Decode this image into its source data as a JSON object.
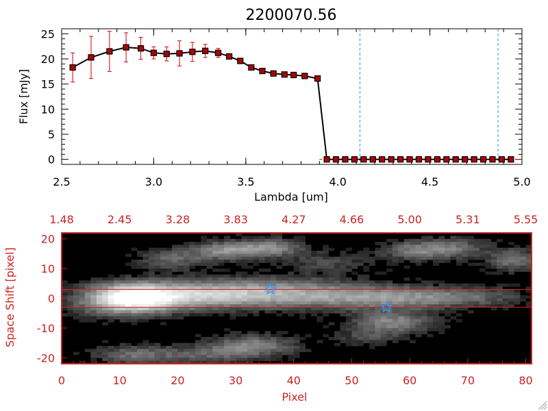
{
  "chart_data": [
    {
      "type": "line",
      "title": "2200070.56",
      "xlabel": "Lambda [um]",
      "ylabel": "Flux [mJy]",
      "xlim": [
        2.5,
        5.0
      ],
      "ylim": [
        -1,
        26
      ],
      "x_ticks": [
        "2.5",
        "3.0",
        "3.5",
        "4.0",
        "4.5",
        "5.0"
      ],
      "y_ticks": [
        "0",
        "5",
        "10",
        "15",
        "20",
        "25"
      ],
      "x": [
        2.56,
        2.66,
        2.76,
        2.85,
        2.93,
        3.0,
        3.07,
        3.14,
        3.21,
        3.28,
        3.35,
        3.41,
        3.47,
        3.53,
        3.59,
        3.65,
        3.71,
        3.76,
        3.82,
        3.89,
        3.94,
        3.99,
        4.04,
        4.09,
        4.14,
        4.19,
        4.24,
        4.29,
        4.34,
        4.39,
        4.44,
        4.49,
        4.54,
        4.59,
        4.64,
        4.69,
        4.74,
        4.79,
        4.84,
        4.89,
        4.94
      ],
      "y": [
        18.3,
        20.3,
        21.5,
        22.3,
        22.1,
        21.2,
        21.0,
        21.1,
        21.4,
        21.6,
        21.2,
        20.5,
        19.6,
        18.3,
        17.6,
        17.1,
        16.9,
        16.8,
        16.6,
        16.1,
        0.0,
        0.0,
        0.0,
        0.0,
        0.0,
        0.0,
        0.0,
        0.0,
        0.0,
        0.0,
        0.0,
        0.0,
        0.0,
        0.0,
        0.0,
        0.0,
        0.0,
        0.0,
        0.0,
        0.0,
        0.0
      ],
      "yerr": [
        2.9,
        4.2,
        4.0,
        2.9,
        2.2,
        1.2,
        1.4,
        2.5,
        1.9,
        1.3,
        0.9,
        0.5,
        0.3,
        0.3,
        0.2,
        0.2,
        0.2,
        0.2,
        0.2,
        0.2,
        0.0,
        0.0,
        0.0,
        0.0,
        0.0,
        0.0,
        0.0,
        0.0,
        0.0,
        0.0,
        0.0,
        0.0,
        0.0,
        0.0,
        0.0,
        0.0,
        0.0,
        0.0,
        0.0,
        0.0,
        0.0
      ],
      "vlines": [
        4.12,
        4.87
      ],
      "grid": false,
      "colors": {
        "line": "#000000",
        "marker": "#b00000",
        "errorbar": "#cc0000",
        "vline": "#1aa0c8",
        "zeroline": "#cc0000",
        "axis": "#000000"
      }
    },
    {
      "type": "heatmap",
      "xlabel": "Pixel",
      "ylabel": "Space Shift [pixel]",
      "xlim": [
        0,
        81
      ],
      "ylim": [
        -22,
        22
      ],
      "x_ticks": [
        "0",
        "10",
        "20",
        "30",
        "40",
        "50",
        "60",
        "70",
        "80"
      ],
      "y_ticks": [
        "-20",
        "-10",
        "0",
        "10",
        "20"
      ],
      "top_axis_ticks": [
        "1.48",
        "2.45",
        "3.28",
        "3.83",
        "4.27",
        "4.66",
        "5.00",
        "5.31",
        "5.55"
      ],
      "hlines": [
        3,
        -3
      ],
      "stars": [
        {
          "x": 36,
          "y": 3
        },
        {
          "x": 56,
          "y": -3
        }
      ],
      "blobs": [
        {
          "x": 12,
          "y": 0.5,
          "sx": 5.5,
          "sy": 3.2,
          "a": 1.0
        },
        {
          "x": 24,
          "y": 0.8,
          "sx": 8,
          "sy": 3.0,
          "a": 0.55
        },
        {
          "x": 40,
          "y": 0.6,
          "sx": 10,
          "sy": 2.8,
          "a": 0.45
        },
        {
          "x": 56,
          "y": 0.0,
          "sx": 8,
          "sy": 2.6,
          "a": 0.35
        },
        {
          "x": 69,
          "y": 0.5,
          "sx": 8,
          "sy": 2.4,
          "a": 0.3
        },
        {
          "x": 36,
          "y": 4.5,
          "sx": 12,
          "sy": 2.5,
          "a": 0.22
        },
        {
          "x": 10,
          "y": -3.5,
          "sx": 6,
          "sy": 2.5,
          "a": 0.22
        },
        {
          "x": 28,
          "y": 16,
          "sx": 4,
          "sy": 2.2,
          "a": 0.45
        },
        {
          "x": 36,
          "y": 17,
          "sx": 4,
          "sy": 2.2,
          "a": 0.45
        },
        {
          "x": 19,
          "y": 13,
          "sx": 4,
          "sy": 2.5,
          "a": 0.3
        },
        {
          "x": 61,
          "y": 16,
          "sx": 4,
          "sy": 2.2,
          "a": 0.4
        },
        {
          "x": 68,
          "y": 17,
          "sx": 4,
          "sy": 2.5,
          "a": 0.3
        },
        {
          "x": 78,
          "y": 13,
          "sx": 3,
          "sy": 2.5,
          "a": 0.4
        },
        {
          "x": 57,
          "y": -8,
          "sx": 5,
          "sy": 2.5,
          "a": 0.45
        },
        {
          "x": 33,
          "y": -16,
          "sx": 5,
          "sy": 2.5,
          "a": 0.45
        },
        {
          "x": 13,
          "y": -19,
          "sx": 5,
          "sy": 2.2,
          "a": 0.35
        },
        {
          "x": 25,
          "y": -19,
          "sx": 5,
          "sy": 2.2,
          "a": 0.25
        },
        {
          "x": 53,
          "y": -13,
          "sx": 4,
          "sy": 2.0,
          "a": 0.2
        },
        {
          "x": 46,
          "y": 12,
          "sx": 5,
          "sy": 2.5,
          "a": 0.2
        }
      ],
      "colors": {
        "frame": "#cc2222",
        "text": "#cc2222",
        "hline": "#cc2222",
        "star": "#3399ff"
      }
    }
  ]
}
